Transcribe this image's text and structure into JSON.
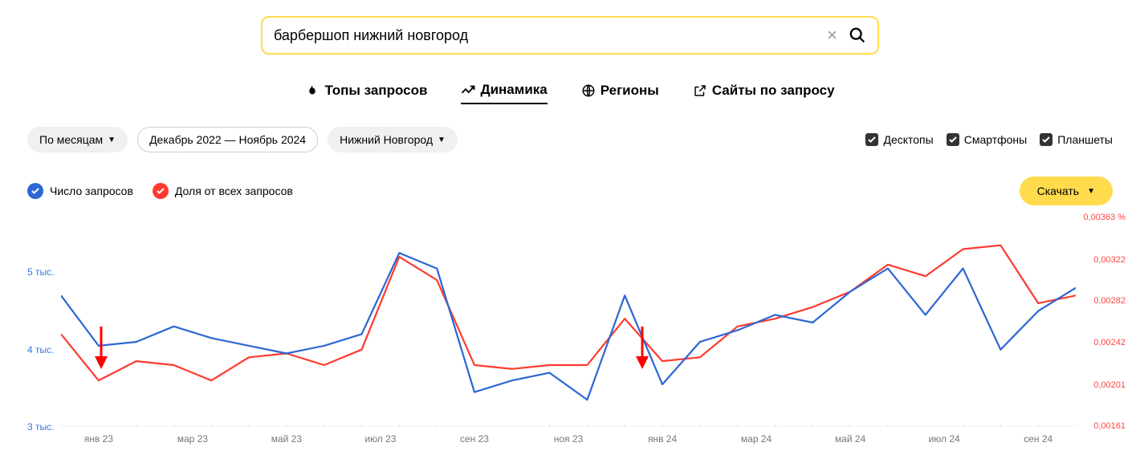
{
  "search": {
    "value": "барбершоп нижний новгород"
  },
  "tabs": [
    {
      "label": "Топы запросов",
      "icon": "fire"
    },
    {
      "label": "Динамика",
      "icon": "trend",
      "active": true
    },
    {
      "label": "Регионы",
      "icon": "globe"
    },
    {
      "label": "Сайты по запросу",
      "icon": "external"
    }
  ],
  "filters": {
    "period": "По месяцам",
    "daterange": "Декабрь 2022 — Ноябрь 2024",
    "region": "Нижний Новгород"
  },
  "devices": {
    "desktop": "Десктопы",
    "smartphone": "Смартфоны",
    "tablet": "Планшеты"
  },
  "legend": {
    "series1": {
      "label": "Число запросов",
      "color": "#2d67d4"
    },
    "series2": {
      "label": "Доля от всех запросов",
      "color": "#ff3b30"
    }
  },
  "download": "Скачать",
  "chart": {
    "type": "line",
    "y_left": {
      "ticks": [
        {
          "label": "5 тыс.",
          "value": 5000
        },
        {
          "label": "4 тыс.",
          "value": 4000
        },
        {
          "label": "3 тыс.",
          "value": 3000
        }
      ],
      "color": "#2d67d4",
      "min": 3000,
      "max": 5700
    },
    "y_right": {
      "ticks": [
        {
          "label": "0,00363 %",
          "value": 0.00363
        },
        {
          "label": "0,00322",
          "value": 0.00322
        },
        {
          "label": "0,00282",
          "value": 0.00282
        },
        {
          "label": "0,00242",
          "value": 0.00242
        },
        {
          "label": "0,00201",
          "value": 0.00201
        },
        {
          "label": "0,00161",
          "value": 0.00161
        }
      ],
      "color": "#ff3b30",
      "min": 0.00161,
      "max": 0.00363
    },
    "x_labels": [
      "янв 23",
      "мар 23",
      "май 23",
      "июл 23",
      "сен 23",
      "ноя 23",
      "янв 24",
      "мар 24",
      "май 24",
      "июл 24",
      "сен 24"
    ],
    "series1": {
      "color": "#2d67d4",
      "width": 2.2,
      "values": [
        4700,
        4050,
        4100,
        4300,
        4150,
        4050,
        3950,
        4050,
        4200,
        5250,
        5050,
        3450,
        3600,
        3700,
        3350,
        4700,
        3550,
        4100,
        4250,
        4450,
        4350,
        4750,
        5050,
        4450,
        5050,
        4000,
        4500,
        4800
      ]
    },
    "series2": {
      "color": "#ff3b30",
      "width": 2.2,
      "values_scaled": [
        4200,
        3600,
        3850,
        3800,
        3600,
        3900,
        3950,
        3800,
        4000,
        5200,
        4900,
        3800,
        3750,
        3800,
        3800,
        4400,
        3850,
        3900,
        4300,
        4400,
        4550,
        4750,
        5100,
        4950,
        5300,
        5350,
        4600,
        4700
      ]
    },
    "arrows": [
      {
        "x_index": 1,
        "direction": "down"
      },
      {
        "x_index": 15.4,
        "direction": "down"
      }
    ],
    "gridline_color": "#e5e5e5",
    "background": "#ffffff"
  }
}
